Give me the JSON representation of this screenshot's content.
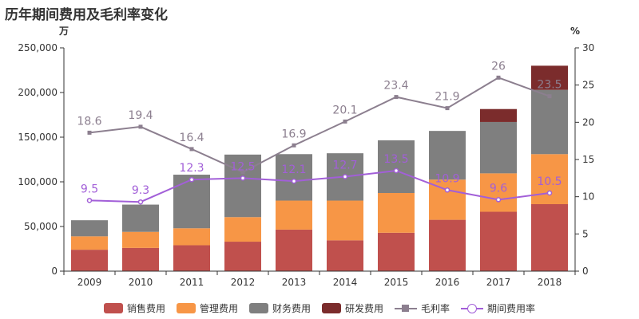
{
  "page": {
    "title": "历年期间费用及毛利率变化"
  },
  "chart_data": {
    "type": "bar",
    "stacked": true,
    "title": "历年期间费用及毛利率变化",
    "categories": [
      "2009",
      "2010",
      "2011",
      "2012",
      "2013",
      "2014",
      "2015",
      "2016",
      "2017",
      "2018"
    ],
    "left_axis": {
      "unit": "万",
      "min": 0,
      "max": 250000,
      "step": 50000,
      "ticks": [
        "0",
        "50,000",
        "100,000",
        "150,000",
        "200,000",
        "250,000"
      ]
    },
    "right_axis": {
      "unit": "%",
      "min": 0,
      "max": 30,
      "step": 5,
      "ticks": [
        "0",
        "5",
        "10",
        "15",
        "20",
        "25",
        "30"
      ]
    },
    "series": [
      {
        "name": "销售费用",
        "type": "bar",
        "axis": "left",
        "color": "#c0504d",
        "values": [
          24000,
          26000,
          29000,
          33000,
          46500,
          34500,
          43000,
          57500,
          66500,
          75000
        ]
      },
      {
        "name": "管理费用",
        "type": "bar",
        "axis": "left",
        "color": "#f79646",
        "values": [
          15000,
          18000,
          19000,
          27500,
          32500,
          44500,
          44500,
          45000,
          43000,
          56000
        ]
      },
      {
        "name": "财务费用",
        "type": "bar",
        "axis": "left",
        "color": "#7f7f7f",
        "values": [
          18000,
          30500,
          60000,
          70000,
          52000,
          53000,
          59000,
          54500,
          57500,
          72000
        ]
      },
      {
        "name": "研发费用",
        "type": "bar",
        "axis": "left",
        "color": "#7b2c2c",
        "values": [
          0,
          0,
          0,
          0,
          0,
          0,
          0,
          0,
          14500,
          27000
        ]
      },
      {
        "name": "毛利率",
        "type": "line",
        "axis": "right",
        "color": "#8c7f8f",
        "marker": "square",
        "values": [
          18.6,
          19.4,
          16.4,
          13.3,
          16.9,
          20.1,
          23.4,
          21.9,
          26,
          23.5
        ],
        "labels": [
          "18.6",
          "19.4",
          "16.4",
          "",
          "16.9",
          "20.1",
          "23.4",
          "21.9",
          "26",
          "23.5"
        ]
      },
      {
        "name": "期间费用率",
        "type": "line",
        "axis": "right",
        "color": "#a25fd8",
        "marker": "circle",
        "values": [
          9.5,
          9.3,
          12.3,
          12.5,
          12.1,
          12.7,
          13.5,
          10.9,
          9.6,
          10.5
        ],
        "labels": [
          "9.5",
          "9.3",
          "12.3",
          "12.5",
          "12.1",
          "12.7",
          "13.5",
          "10.9",
          "9.6",
          "10.5"
        ]
      }
    ],
    "grid": false,
    "legend": "bottom"
  }
}
